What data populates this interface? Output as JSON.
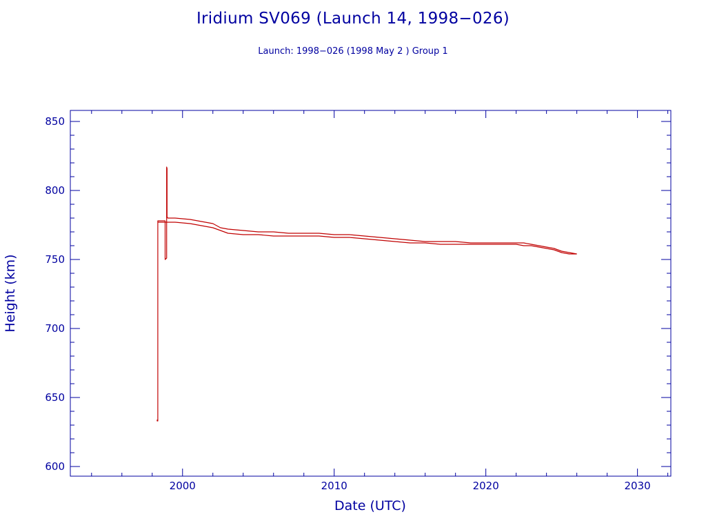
{
  "chart_data": {
    "type": "line",
    "title": "Iridium SV069 (Launch 14, 1998−026)",
    "subtitle": "Launch: 1998−026  (1998 May  2 )  Group 1",
    "xlabel": "Date (UTC)",
    "ylabel": "Height (km)",
    "xlim": [
      1992.6,
      2032.2
    ],
    "ylim": [
      593,
      858
    ],
    "x_ticks": [
      2000,
      2010,
      2020,
      2030
    ],
    "x_tick_labels": [
      "2000",
      "2010",
      "2020",
      "2030"
    ],
    "y_ticks": [
      600,
      650,
      700,
      750,
      800,
      850
    ],
    "y_tick_labels": [
      "600",
      "650",
      "700",
      "750",
      "800",
      "850"
    ],
    "color": "#c00000",
    "axis_color": "#0000a0",
    "series": [
      {
        "x": [
          1998.33,
          1998.33,
          1998.37,
          1998.37,
          1998.85,
          1998.85,
          1998.95,
          1998.95,
          1998.98,
          1998.98,
          1999.02,
          1999.5,
          2000.5,
          2001.5,
          2002.0,
          2002.5,
          2003.0,
          2004.0,
          2005.0,
          2006.0,
          2007.0,
          2008.0,
          2009.0,
          2010.0,
          2011.0,
          2012.0,
          2013.0,
          2014.0,
          2015.0,
          2016.0,
          2017.0,
          2018.0,
          2019.0,
          2020.0,
          2021.0,
          2022.0,
          2022.5,
          2023.0,
          2023.5,
          2024.0,
          2024.5,
          2025.0,
          2025.5,
          2026.0
        ],
        "y": [
          634,
          633,
          633,
          778,
          778,
          750,
          751,
          817,
          816,
          781,
          780,
          780,
          779,
          777,
          776,
          773,
          772,
          771,
          770,
          770,
          769,
          769,
          769,
          768,
          768,
          767,
          766,
          765,
          764,
          763,
          763,
          763,
          762,
          762,
          762,
          762,
          762,
          761,
          760,
          759,
          758,
          756,
          755,
          754
        ]
      },
      {
        "x": [
          1998.37,
          1999.02,
          1999.5,
          2000.5,
          2001.5,
          2002.0,
          2002.5,
          2003.0,
          2004.0,
          2005.0,
          2006.0,
          2007.0,
          2008.0,
          2009.0,
          2010.0,
          2011.0,
          2012.0,
          2013.0,
          2014.0,
          2015.0,
          2016.0,
          2017.0,
          2018.0,
          2019.0,
          2020.0,
          2021.0,
          2022.0,
          2022.5,
          2023.0,
          2023.5,
          2024.0,
          2024.5,
          2025.0,
          2025.5,
          2026.0
        ],
        "y": [
          777,
          777,
          777,
          776,
          774,
          773,
          771,
          769,
          768,
          768,
          767,
          767,
          767,
          767,
          766,
          766,
          765,
          764,
          763,
          762,
          762,
          761,
          761,
          761,
          761,
          761,
          761,
          760,
          760,
          759,
          758,
          757,
          755,
          754,
          754
        ]
      }
    ]
  }
}
